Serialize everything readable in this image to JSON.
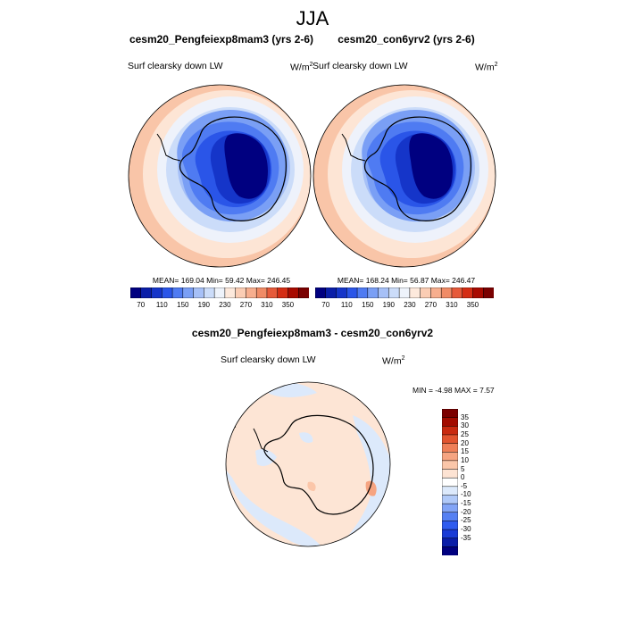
{
  "figure": {
    "season": "JJA",
    "panels": [
      {
        "title": "cesm20_Pengfeiexp8mam3 (yrs 2-6)",
        "variable": "Surf clearsky down LW",
        "units_base": "W/m",
        "units_exp": "2",
        "stats": "MEAN= 169.04  Min=  59.42  Max= 246.45"
      },
      {
        "title": "cesm20_con6yrv2 (yrs 2-6)",
        "variable": "Surf clearsky down LW",
        "units_base": "W/m",
        "units_exp": "2",
        "stats": "MEAN= 168.24  Min=  56.87  Max= 246.47"
      }
    ],
    "top_colorbar": {
      "colors": [
        "#000080",
        "#0a1ea8",
        "#1535c9",
        "#2a55e8",
        "#4f7bf2",
        "#7a9ff5",
        "#a6c0f7",
        "#cbdcf9",
        "#eef3fb",
        "#fde9dc",
        "#fbcdb4",
        "#f7ae8e",
        "#f08b66",
        "#e65a3a",
        "#d42d14",
        "#a80a00",
        "#7a0000"
      ],
      "labels": [
        "70",
        "110",
        "150",
        "190",
        "230",
        "270",
        "310",
        "350"
      ]
    },
    "difference_panel": {
      "title": "cesm20_Pengfeiexp8mam3 - cesm20_con6yrv2",
      "variable": "Surf clearsky down LW",
      "units_base": "W/m",
      "units_exp": "2",
      "stats": "MIN =  -4.98 MAX =   7.57"
    },
    "diff_colorbar": {
      "colors": [
        "#000080",
        "#0a1ea8",
        "#1a3cd6",
        "#2f5cef",
        "#5580f3",
        "#82a4f6",
        "#b0c9f8",
        "#dce9fb",
        "#ffffff",
        "#fde3d3",
        "#fbc6a9",
        "#f6a481",
        "#ef7f58",
        "#e2542f",
        "#c92a10",
        "#a30c00",
        "#7c0000"
      ],
      "labels": [
        "35",
        "30",
        "25",
        "20",
        "15",
        "10",
        "5",
        "0",
        "-5",
        "-10",
        "-15",
        "-20",
        "-25",
        "-30",
        "-35"
      ]
    }
  }
}
